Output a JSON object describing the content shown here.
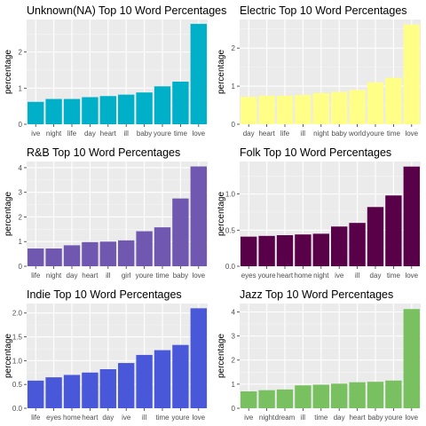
{
  "chart_data": [
    {
      "type": "bar",
      "title": "Unknown(NA) Top 10 Word Percentages",
      "xlabel": "",
      "ylabel": "percentage",
      "categories": [
        "ive",
        "night",
        "life",
        "day",
        "heart",
        "ill",
        "baby",
        "youre",
        "time",
        "love"
      ],
      "values": [
        0.62,
        0.7,
        0.7,
        0.75,
        0.78,
        0.82,
        0.88,
        1.05,
        1.18,
        2.78
      ],
      "ylim": [
        0,
        2.9
      ],
      "yticks": [
        0,
        1,
        2
      ],
      "color": "#00B0C8",
      "grid": true
    },
    {
      "type": "bar",
      "title": "Electric Top 10 Word Percentages",
      "xlabel": "",
      "ylabel": "percentage",
      "categories": [
        "day",
        "heart",
        "life",
        "ill",
        "night",
        "baby",
        "world",
        "youre",
        "time",
        "love"
      ],
      "values": [
        0.72,
        0.75,
        0.75,
        0.77,
        0.82,
        0.85,
        0.9,
        1.1,
        1.22,
        2.62
      ],
      "ylim": [
        0,
        2.75
      ],
      "yticks": [
        0,
        1,
        2
      ],
      "color": "#FFFF88",
      "grid": true
    },
    {
      "type": "bar",
      "title": "R&B Top 10 Word Percentages",
      "xlabel": "",
      "ylabel": "percentage",
      "categories": [
        "life",
        "night",
        "day",
        "heart",
        "ill",
        "girl",
        "youre",
        "time",
        "baby",
        "love"
      ],
      "values": [
        0.72,
        0.72,
        0.85,
        0.98,
        1.0,
        1.05,
        1.42,
        1.58,
        2.75,
        4.05
      ],
      "ylim": [
        0,
        4.25
      ],
      "yticks": [
        0,
        1,
        2,
        3,
        4
      ],
      "color": "#7058B0",
      "grid": true
    },
    {
      "type": "bar",
      "title": "Folk Top 10 Word Percentages",
      "xlabel": "",
      "ylabel": "percentage",
      "categories": [
        "eyes",
        "youre",
        "heart",
        "home",
        "night",
        "ive",
        "ill",
        "day",
        "time",
        "love"
      ],
      "values": [
        0.41,
        0.42,
        0.43,
        0.44,
        0.45,
        0.55,
        0.6,
        0.82,
        0.98,
        1.38
      ],
      "ylim": [
        0,
        1.45
      ],
      "yticks": [
        0.0,
        0.5,
        1.0
      ],
      "color": "#580048",
      "grid": true
    },
    {
      "type": "bar",
      "title": "Indie Top 10 Word Percentages",
      "xlabel": "",
      "ylabel": "percentage",
      "categories": [
        "life",
        "eyes",
        "home",
        "heart",
        "day",
        "ive",
        "ill",
        "time",
        "youre",
        "love"
      ],
      "values": [
        0.58,
        0.65,
        0.7,
        0.75,
        0.82,
        0.95,
        1.12,
        1.22,
        1.33,
        2.1
      ],
      "ylim": [
        0,
        2.2
      ],
      "yticks": [
        0.0,
        0.5,
        1.0,
        1.5,
        2.0
      ],
      "color": "#4858D8",
      "grid": true
    },
    {
      "type": "bar",
      "title": "Jazz Top 10 Word Percentages",
      "xlabel": "",
      "ylabel": "percentage",
      "categories": [
        "ive",
        "night",
        "dream",
        "ill",
        "time",
        "day",
        "heart",
        "baby",
        "youre",
        "love"
      ],
      "values": [
        0.7,
        0.75,
        0.78,
        0.95,
        0.98,
        1.02,
        1.08,
        1.1,
        1.15,
        4.12
      ],
      "ylim": [
        0,
        4.35
      ],
      "yticks": [
        0,
        1,
        2,
        3,
        4
      ],
      "color": "#78C060",
      "grid": true
    }
  ]
}
